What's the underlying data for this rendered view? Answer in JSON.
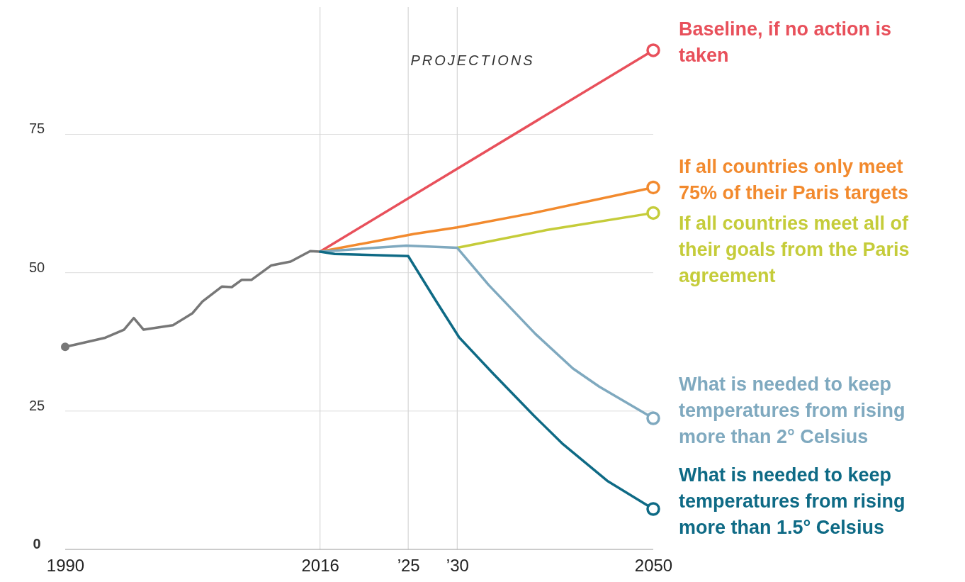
{
  "chart_data": {
    "type": "line",
    "xlim": [
      1990,
      2050
    ],
    "ylim": [
      0,
      98
    ],
    "xticks": [
      1990,
      2016,
      {
        "value": 2025,
        "label": "’25"
      },
      {
        "value": 2030,
        "label": "’30"
      },
      2050
    ],
    "yticks": [
      0,
      25,
      50,
      75
    ],
    "grid": "y",
    "line_style": "solid",
    "annotations": [
      "PROJECTIONS"
    ],
    "ref_lines": [
      {
        "axis": "x",
        "value": 2016,
        "color": "#d6d6d6"
      },
      {
        "axis": "x",
        "value": 2025,
        "color": "#d6d6d6"
      },
      {
        "axis": "x",
        "value": 2030,
        "color": "#d6d6d6"
      }
    ],
    "series": [
      {
        "color": "#777777",
        "x": [
          1990,
          1991,
          1994,
          1996,
          1997,
          1998,
          2001,
          2003,
          2004,
          2006,
          2007,
          2008,
          2009,
          2011,
          2013,
          2015,
          2016
        ],
        "values": [
          36.6,
          37.0,
          38.2,
          39.7,
          41.8,
          39.7,
          40.5,
          42.7,
          44.8,
          47.5,
          47.4,
          48.7,
          48.7,
          51.3,
          52.0,
          53.9,
          53.8
        ]
      },
      {
        "name": "Baseline, if no action is taken",
        "color": "#e8505b",
        "x": [
          2016,
          2050
        ],
        "values": [
          53.8,
          90.2
        ]
      },
      {
        "name": "If all countries only meet 75% of their Paris targets",
        "color": "#f28a2e",
        "x": [
          2016,
          2025.6,
          2030,
          2037.8,
          2050
        ],
        "values": [
          53.8,
          57.0,
          58.2,
          60.8,
          65.4
        ]
      },
      {
        "name": "If all countries meet all of their goals from the Paris agreement",
        "color": "#c5cc3a",
        "x": [
          2030,
          2039.1,
          2050
        ],
        "values": [
          54.5,
          57.7,
          60.8
        ]
      },
      {
        "name": "What is needed to keep temperatures from rising more than 2° Celsius",
        "color": "#7fa9bf",
        "x": [
          2016,
          2024.8,
          2030,
          2033.2,
          2038,
          2041.8,
          2044.5,
          2050
        ],
        "values": [
          53.8,
          54.9,
          54.5,
          47.8,
          38.9,
          32.7,
          29.4,
          23.7
        ]
      },
      {
        "name": "What is needed to keep temperatures from rising more than 1.5° Celsius",
        "color": "#0e6a85",
        "x": [
          2016,
          2017.5,
          2025,
          2027.8,
          2030.2,
          2033.7,
          2037.8,
          2040.8,
          2045.3,
          2050
        ],
        "values": [
          53.8,
          53.4,
          53.0,
          45.0,
          38.3,
          31.7,
          24.2,
          19.0,
          12.4,
          7.3
        ]
      }
    ]
  }
}
